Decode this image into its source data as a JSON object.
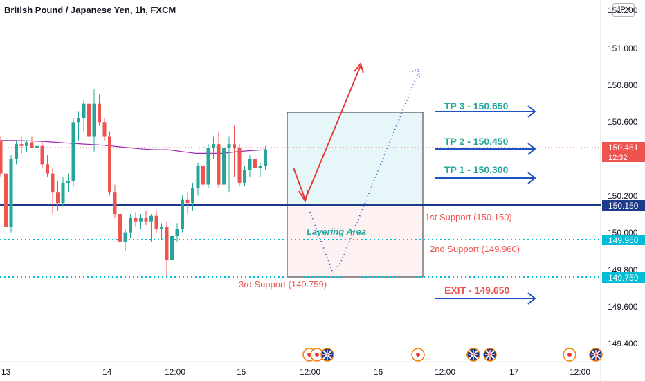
{
  "title": "British Pound / Japanese Yen, 1h, FXCM",
  "currency_badge": "JPY",
  "colors": {
    "up": "#26a69a",
    "down": "#ef5350",
    "ma": "#9c27b0",
    "support_line": "#1e3a8a",
    "dotted_support": "#00bcd4",
    "tp_text": "#26a69a",
    "exit_text": "#ef5350",
    "arrow_blue": "#1e53c4",
    "zone_top": "#e6f6f9",
    "zone_bottom": "#fdf1f1",
    "red_path": "#e53935",
    "blue_path": "#1e53c4"
  },
  "chart_data": {
    "type": "candlestick",
    "symbol": "GBPJPY",
    "timeframe": "1h",
    "ylim": [
      149.3,
      151.2
    ],
    "price_ticks": [
      "151.200",
      "151.000",
      "150.800",
      "150.600",
      "150.200",
      "150.000",
      "149.800",
      "149.600",
      "149.400"
    ],
    "time_ticks": [
      "13",
      "14",
      "12:00",
      "15",
      "12:00",
      "16",
      "12:00",
      "17",
      "12:00"
    ],
    "current_price": {
      "value": "150.461",
      "countdown": "12:32"
    },
    "price_labels": [
      {
        "value": "150.150",
        "style": "navy"
      },
      {
        "value": "149.960",
        "style": "teal"
      },
      {
        "value": "149.759",
        "style": "teal"
      }
    ],
    "horizontal_lines": [
      {
        "price": 150.15,
        "style": "solid"
      },
      {
        "price": 149.96,
        "style": "dotted"
      },
      {
        "price": 149.759,
        "style": "dotted"
      },
      {
        "price": 150.461,
        "style": "dotted-red"
      }
    ],
    "moving_average": [
      150.5,
      150.5,
      150.498,
      150.495,
      150.49,
      150.485,
      150.48,
      150.476,
      150.47,
      150.462,
      150.455,
      150.45,
      150.45,
      150.44,
      150.43,
      150.43,
      150.43,
      150.44,
      150.445,
      150.45
    ],
    "candles": [
      {
        "o": 150.5,
        "h": 150.52,
        "l": 150.3,
        "c": 150.32
      },
      {
        "o": 150.32,
        "h": 150.45,
        "l": 150.0,
        "c": 150.03
      },
      {
        "o": 150.03,
        "h": 150.42,
        "l": 150.0,
        "c": 150.4
      },
      {
        "o": 150.4,
        "h": 150.5,
        "l": 150.37,
        "c": 150.48
      },
      {
        "o": 150.48,
        "h": 150.52,
        "l": 150.43,
        "c": 150.47
      },
      {
        "o": 150.47,
        "h": 150.5,
        "l": 150.44,
        "c": 150.49
      },
      {
        "o": 150.49,
        "h": 150.52,
        "l": 150.46,
        "c": 150.46
      },
      {
        "o": 150.46,
        "h": 150.49,
        "l": 150.42,
        "c": 150.47
      },
      {
        "o": 150.47,
        "h": 150.5,
        "l": 150.35,
        "c": 150.37
      },
      {
        "o": 150.37,
        "h": 150.42,
        "l": 150.3,
        "c": 150.32
      },
      {
        "o": 150.32,
        "h": 150.35,
        "l": 150.1,
        "c": 150.22
      },
      {
        "o": 150.22,
        "h": 150.28,
        "l": 150.12,
        "c": 150.16
      },
      {
        "o": 150.16,
        "h": 150.3,
        "l": 150.14,
        "c": 150.27
      },
      {
        "o": 150.27,
        "h": 150.32,
        "l": 150.22,
        "c": 150.28
      },
      {
        "o": 150.28,
        "h": 150.62,
        "l": 150.25,
        "c": 150.6
      },
      {
        "o": 150.6,
        "h": 150.66,
        "l": 150.5,
        "c": 150.62
      },
      {
        "o": 150.62,
        "h": 150.72,
        "l": 150.55,
        "c": 150.7
      },
      {
        "o": 150.7,
        "h": 150.74,
        "l": 150.48,
        "c": 150.52
      },
      {
        "o": 150.52,
        "h": 150.78,
        "l": 150.44,
        "c": 150.7
      },
      {
        "o": 150.7,
        "h": 150.75,
        "l": 150.58,
        "c": 150.6
      },
      {
        "o": 150.6,
        "h": 150.62,
        "l": 150.5,
        "c": 150.52
      },
      {
        "o": 150.52,
        "h": 150.55,
        "l": 150.2,
        "c": 150.22
      },
      {
        "o": 150.22,
        "h": 150.26,
        "l": 150.08,
        "c": 150.1
      },
      {
        "o": 150.1,
        "h": 150.14,
        "l": 149.92,
        "c": 149.95
      },
      {
        "o": 149.95,
        "h": 150.02,
        "l": 149.9,
        "c": 150.0
      },
      {
        "o": 150.0,
        "h": 150.1,
        "l": 149.97,
        "c": 150.08
      },
      {
        "o": 150.08,
        "h": 150.11,
        "l": 150.03,
        "c": 150.06
      },
      {
        "o": 150.06,
        "h": 150.1,
        "l": 150.02,
        "c": 150.08
      },
      {
        "o": 150.08,
        "h": 150.12,
        "l": 150.04,
        "c": 150.06
      },
      {
        "o": 150.06,
        "h": 150.1,
        "l": 149.95,
        "c": 150.09
      },
      {
        "o": 150.09,
        "h": 150.12,
        "l": 150.0,
        "c": 150.02
      },
      {
        "o": 150.02,
        "h": 150.05,
        "l": 149.96,
        "c": 150.03
      },
      {
        "o": 150.03,
        "h": 150.06,
        "l": 149.76,
        "c": 149.85
      },
      {
        "o": 149.85,
        "h": 150.0,
        "l": 149.83,
        "c": 149.98
      },
      {
        "o": 149.98,
        "h": 150.05,
        "l": 149.95,
        "c": 150.02
      },
      {
        "o": 150.02,
        "h": 150.2,
        "l": 150.0,
        "c": 150.18
      },
      {
        "o": 150.18,
        "h": 150.22,
        "l": 150.1,
        "c": 150.16
      },
      {
        "o": 150.16,
        "h": 150.27,
        "l": 150.12,
        "c": 150.24
      },
      {
        "o": 150.24,
        "h": 150.38,
        "l": 150.2,
        "c": 150.36
      },
      {
        "o": 150.36,
        "h": 150.4,
        "l": 150.2,
        "c": 150.26
      },
      {
        "o": 150.26,
        "h": 150.48,
        "l": 150.24,
        "c": 150.46
      },
      {
        "o": 150.46,
        "h": 150.52,
        "l": 150.4,
        "c": 150.48
      },
      {
        "o": 150.48,
        "h": 150.55,
        "l": 150.24,
        "c": 150.26
      },
      {
        "o": 150.26,
        "h": 150.6,
        "l": 150.24,
        "c": 150.46
      },
      {
        "o": 150.46,
        "h": 150.52,
        "l": 150.22,
        "c": 150.48
      },
      {
        "o": 150.48,
        "h": 150.58,
        "l": 150.3,
        "c": 150.46
      },
      {
        "o": 150.46,
        "h": 150.48,
        "l": 150.25,
        "c": 150.27
      },
      {
        "o": 150.27,
        "h": 150.36,
        "l": 150.25,
        "c": 150.34
      },
      {
        "o": 150.34,
        "h": 150.42,
        "l": 150.3,
        "c": 150.4
      },
      {
        "o": 150.4,
        "h": 150.45,
        "l": 150.32,
        "c": 150.35
      },
      {
        "o": 150.35,
        "h": 150.38,
        "l": 150.3,
        "c": 150.36
      },
      {
        "o": 150.36,
        "h": 150.47,
        "l": 150.34,
        "c": 150.45
      }
    ]
  },
  "annotations": {
    "tp3": "TP 3 - 150.650",
    "tp2": "TP 2 - 150.450",
    "tp1": "TP 1 - 150.300",
    "exit": "EXIT - 149.650",
    "support1": "1st Support (150.150)",
    "support2": "2nd Support (149.960)",
    "support3": "3rd Support (149.759)",
    "layering": "Layering Area"
  },
  "event_icons": [
    "event-red-icon",
    "event-red-icon",
    "uk-flag-icon",
    "event-red-icon",
    "uk-flag-icon",
    "uk-flag-icon",
    "event-red-icon",
    "uk-flag-icon"
  ]
}
